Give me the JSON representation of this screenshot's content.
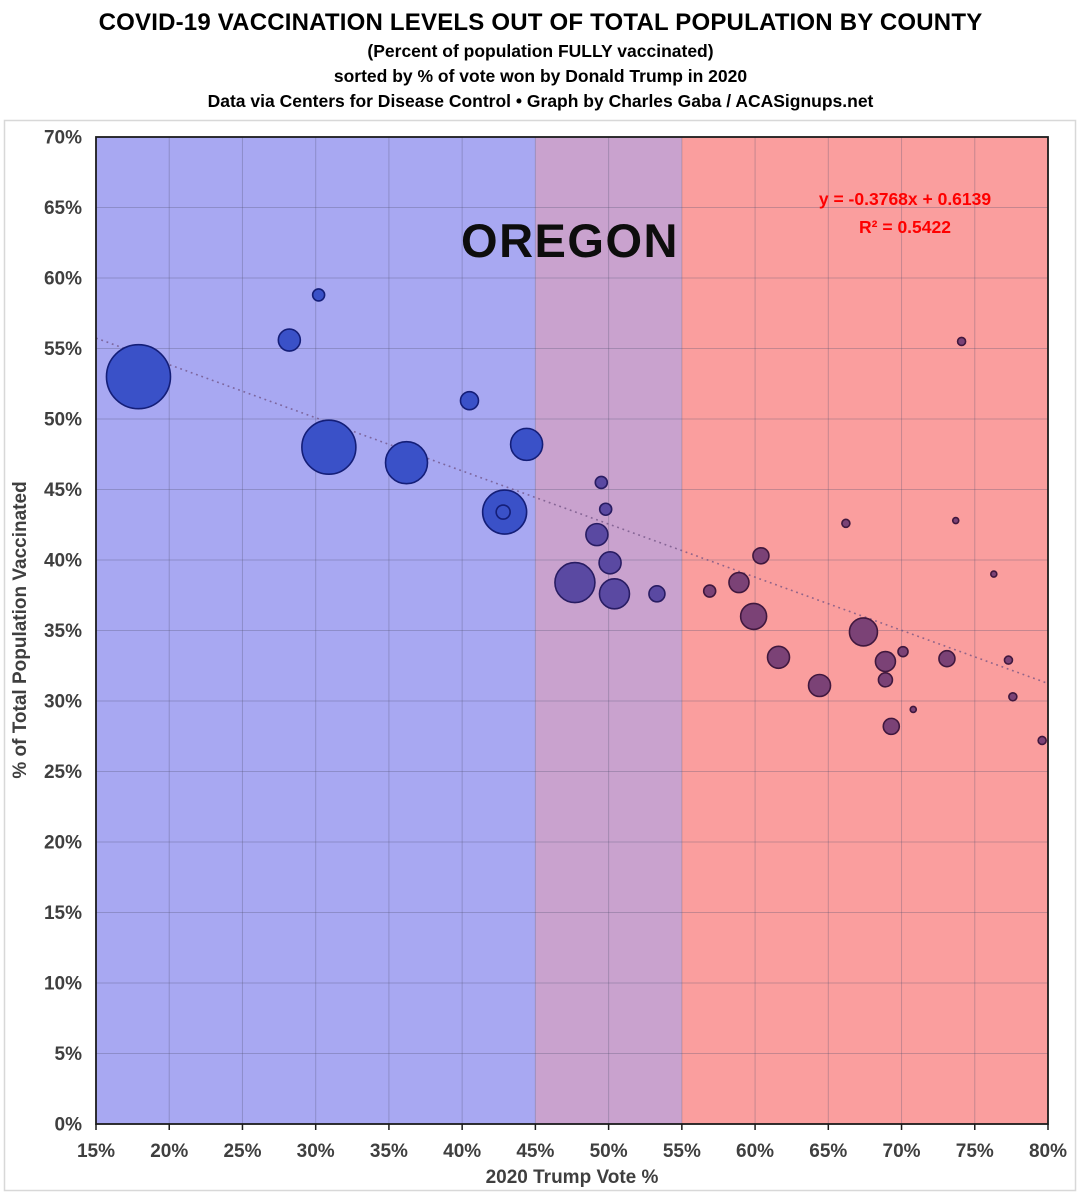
{
  "header": {
    "title": "COVID-19 VACCINATION LEVELS OUT OF TOTAL POPULATION BY COUNTY",
    "subtitle": "(Percent of population FULLY vaccinated)",
    "sort_note": "sorted by % of vote won by Donald Trump in 2020",
    "credit": "Data via Centers for Disease Control • Graph by Charles Gaba / ACASignups.net"
  },
  "annotations": {
    "state_label": "OREGON",
    "equation_line1": "y = -0.3768x + 0.6139",
    "equation_line2": "R² = 0.5422",
    "equation_color": "#fe0000",
    "state_label_color": "#0d0d0d"
  },
  "chart_data": {
    "type": "scatter",
    "title": "OREGON",
    "xlabel": "2020 Trump Vote %",
    "ylabel": "% of Total Population Vaccinated",
    "xlim": [
      15,
      80
    ],
    "ylim": [
      0,
      70
    ],
    "grid": true,
    "x_ticks": [
      "15%",
      "20%",
      "25%",
      "30%",
      "35%",
      "40%",
      "45%",
      "50%",
      "55%",
      "60%",
      "65%",
      "70%",
      "75%",
      "80%"
    ],
    "y_ticks": [
      "0%",
      "5%",
      "10%",
      "15%",
      "20%",
      "25%",
      "30%",
      "35%",
      "40%",
      "45%",
      "50%",
      "55%",
      "60%",
      "65%",
      "70%"
    ],
    "zones": [
      {
        "name": "blue-lean",
        "x_range": [
          15,
          45
        ],
        "color": "#a8a8f2"
      },
      {
        "name": "purple-swing",
        "x_range": [
          45,
          55
        ],
        "color": "#c9a2ce"
      },
      {
        "name": "red-lean",
        "x_range": [
          55,
          80
        ],
        "color": "#fa9e9e"
      }
    ],
    "bubble_styles": {
      "blue": {
        "fill": "#3a51c8",
        "stroke": "#141e78"
      },
      "purple": {
        "fill": "#5a49a2",
        "stroke": "#281c62"
      },
      "red": {
        "fill": "#7b4276",
        "stroke": "#40183e"
      }
    },
    "trendline": {
      "equation": "y = -0.3768x + 0.6139",
      "r_squared": "R² = 0.5422",
      "slope": -0.3768,
      "intercept": 0.6139,
      "style": "dotted",
      "color": "rgba(110,80,130,0.75)"
    },
    "points": [
      {
        "x": 17.9,
        "y": 53.0,
        "r": 32,
        "zone": "blue"
      },
      {
        "x": 30.2,
        "y": 58.8,
        "r": 6,
        "zone": "blue"
      },
      {
        "x": 28.2,
        "y": 55.6,
        "r": 11,
        "zone": "blue"
      },
      {
        "x": 30.9,
        "y": 48.0,
        "r": 27,
        "zone": "blue"
      },
      {
        "x": 36.2,
        "y": 46.9,
        "r": 21,
        "zone": "blue"
      },
      {
        "x": 40.5,
        "y": 51.3,
        "r": 9,
        "zone": "blue"
      },
      {
        "x": 44.4,
        "y": 48.2,
        "r": 16,
        "zone": "blue"
      },
      {
        "x": 42.9,
        "y": 43.4,
        "r": 22,
        "zone": "blue"
      },
      {
        "x": 42.8,
        "y": 43.4,
        "r": 7,
        "zone": "blue"
      },
      {
        "x": 49.5,
        "y": 45.5,
        "r": 6,
        "zone": "purple"
      },
      {
        "x": 49.8,
        "y": 43.6,
        "r": 6,
        "zone": "purple"
      },
      {
        "x": 49.2,
        "y": 41.8,
        "r": 11,
        "zone": "purple"
      },
      {
        "x": 50.1,
        "y": 39.8,
        "r": 11,
        "zone": "purple"
      },
      {
        "x": 47.7,
        "y": 38.4,
        "r": 20,
        "zone": "purple"
      },
      {
        "x": 50.4,
        "y": 37.6,
        "r": 15,
        "zone": "purple"
      },
      {
        "x": 53.3,
        "y": 37.6,
        "r": 8,
        "zone": "purple"
      },
      {
        "x": 56.9,
        "y": 37.8,
        "r": 6,
        "zone": "red"
      },
      {
        "x": 58.9,
        "y": 38.4,
        "r": 10,
        "zone": "red"
      },
      {
        "x": 60.4,
        "y": 40.3,
        "r": 8,
        "zone": "red"
      },
      {
        "x": 59.9,
        "y": 36.0,
        "r": 13,
        "zone": "red"
      },
      {
        "x": 61.6,
        "y": 33.1,
        "r": 11,
        "zone": "red"
      },
      {
        "x": 64.4,
        "y": 31.1,
        "r": 11,
        "zone": "red"
      },
      {
        "x": 66.2,
        "y": 42.6,
        "r": 4,
        "zone": "red"
      },
      {
        "x": 67.4,
        "y": 34.9,
        "r": 14,
        "zone": "red"
      },
      {
        "x": 68.9,
        "y": 32.8,
        "r": 10,
        "zone": "red"
      },
      {
        "x": 68.9,
        "y": 31.5,
        "r": 7,
        "zone": "red"
      },
      {
        "x": 70.1,
        "y": 33.5,
        "r": 5,
        "zone": "red"
      },
      {
        "x": 69.3,
        "y": 28.2,
        "r": 8,
        "zone": "red"
      },
      {
        "x": 70.8,
        "y": 29.4,
        "r": 3,
        "zone": "red"
      },
      {
        "x": 73.1,
        "y": 33.0,
        "r": 8,
        "zone": "red"
      },
      {
        "x": 73.7,
        "y": 42.8,
        "r": 3,
        "zone": "red"
      },
      {
        "x": 74.1,
        "y": 55.5,
        "r": 4,
        "zone": "red"
      },
      {
        "x": 76.3,
        "y": 39.0,
        "r": 3,
        "zone": "red"
      },
      {
        "x": 77.3,
        "y": 32.9,
        "r": 4,
        "zone": "red"
      },
      {
        "x": 77.6,
        "y": 30.3,
        "r": 4,
        "zone": "red"
      },
      {
        "x": 79.6,
        "y": 27.2,
        "r": 4,
        "zone": "red"
      }
    ]
  }
}
